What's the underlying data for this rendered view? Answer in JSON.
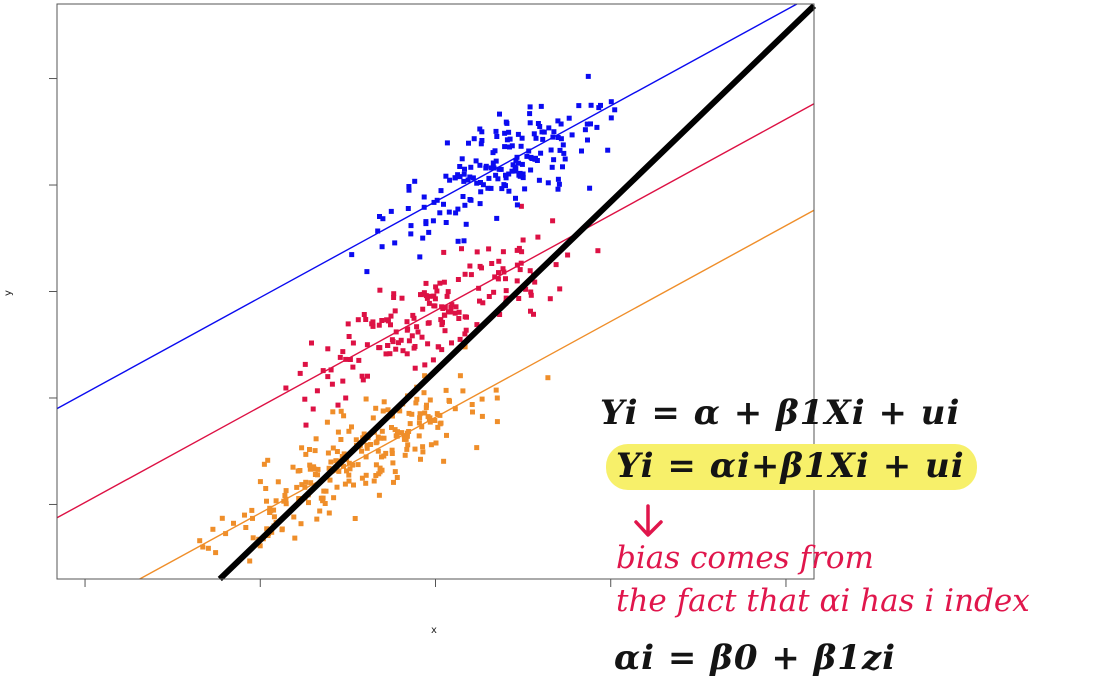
{
  "chart_data": {
    "type": "scatter",
    "xlabel": "x",
    "ylabel": "y",
    "xlim": [
      0,
      10.8
    ],
    "ylim": [
      0,
      10.8
    ],
    "x_ticks": [
      0.4,
      2.9,
      5.4,
      7.9,
      10.4
    ],
    "y_ticks": [
      1.4,
      3.4,
      5.4,
      7.4,
      9.4
    ],
    "x_tick_labels_shown": false,
    "y_tick_labels_shown": false,
    "grid": false,
    "series": [
      {
        "color": "#0b0bf0",
        "marker": "square",
        "points": 180,
        "x_center": 6.4,
        "x_sd": 1.15,
        "line": {
          "intercept": 3.2,
          "slope": 0.72
        }
      },
      {
        "color": "#dd1144",
        "marker": "square",
        "points": 180,
        "x_center": 5.3,
        "x_sd": 1.35,
        "line": {
          "intercept": 1.15,
          "slope": 0.72
        }
      },
      {
        "color": "#ef8e2a",
        "marker": "square",
        "points": 230,
        "x_center": 4.2,
        "x_sd": 1.45,
        "line": {
          "intercept": -0.85,
          "slope": 0.72
        }
      }
    ],
    "pooled_line": {
      "color": "#000000",
      "intercept": -2.95,
      "slope": 1.27
    }
  },
  "annotations": {
    "eq1": "Yi = α + β1Xi + ui",
    "eq2": "Yi = αi+β1Xi + ui",
    "note1": "bias comes from",
    "note2": "the fact that αi has i index",
    "eq3": "αi = β0 + β1zi"
  }
}
